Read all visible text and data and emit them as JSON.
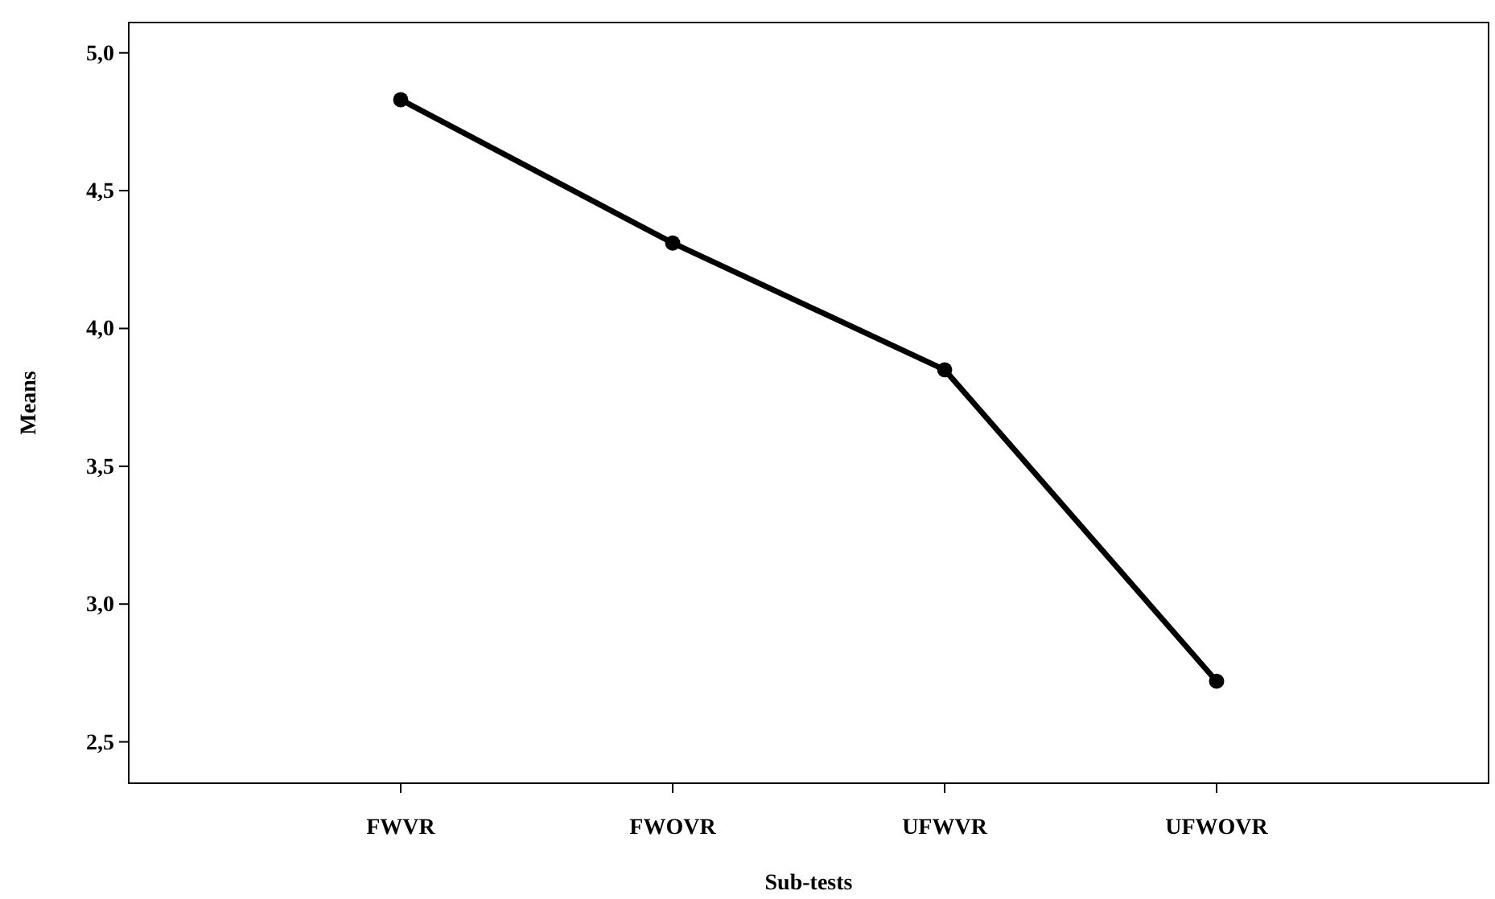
{
  "chart_data": {
    "type": "line",
    "xlabel": "Sub-tests",
    "ylabel": "Means",
    "categories": [
      "FWVR",
      "FWOVR",
      "UFWVR",
      "UFWOVR"
    ],
    "series": [
      {
        "color": "#000000",
        "values": [
          4.83,
          4.31,
          3.85,
          2.72
        ]
      }
    ],
    "ylim": [
      2.35,
      5.11
    ],
    "yticks": [
      {
        "value": 2.5,
        "label": "2,5"
      },
      {
        "value": 3.0,
        "label": "3,0"
      },
      {
        "value": 3.5,
        "label": "3,5"
      },
      {
        "value": 4.0,
        "label": "4,0"
      },
      {
        "value": 4.5,
        "label": "4,5"
      },
      {
        "value": 5.0,
        "label": "5,0"
      }
    ],
    "marker": "circle",
    "line_style": "solid"
  }
}
